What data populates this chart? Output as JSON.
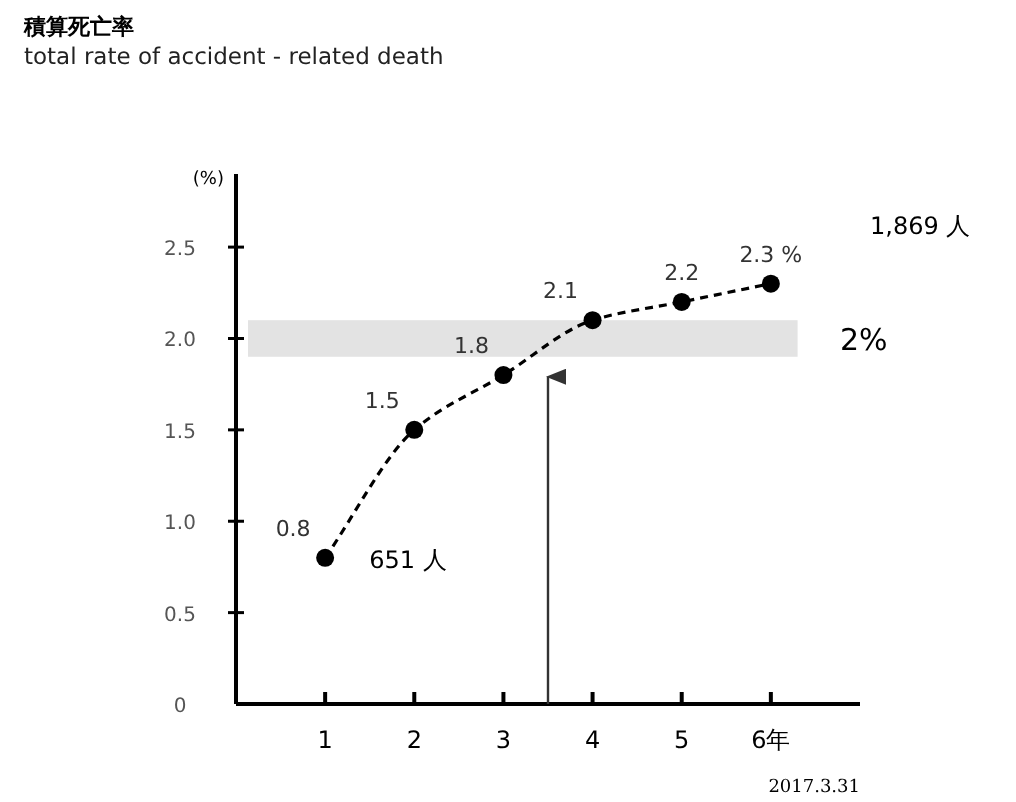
{
  "chart_data": {
    "type": "line",
    "title": "積算死亡率",
    "subtitle": "total rate of accident - related death",
    "ylabel": "(%)",
    "x": [
      1,
      2,
      3,
      4,
      5,
      6
    ],
    "series": [
      {
        "color": "#000000",
        "values": [
          0.8,
          1.5,
          1.8,
          2.1,
          2.2,
          2.3
        ],
        "value_labels": [
          "0.8",
          "1.5",
          "1.8",
          "2.1",
          "2.2",
          "2.3 %"
        ]
      }
    ],
    "xlim": [
      0,
      7
    ],
    "ylim": [
      0,
      2.9
    ],
    "xticks": [
      1,
      2,
      3,
      4,
      5,
      {
        "value": 6,
        "label": "6年"
      }
    ],
    "yticks": [
      0,
      0.5,
      {
        "value": 1,
        "label": "1.0"
      },
      1.5,
      {
        "value": 2,
        "label": "2.0"
      },
      2.5
    ],
    "bands": [
      {
        "axis": "y",
        "from": 1.9,
        "to": 2.1,
        "label": "2%",
        "color": "#e3e3e3"
      }
    ],
    "ref_lines": [
      {
        "axis": "x",
        "value": 3.5,
        "color": "#333333"
      }
    ],
    "annotations": [
      {
        "text": "651 人",
        "x": 1,
        "y": 0.8
      },
      "1,869 人",
      "2017.3.31"
    ],
    "marker": "circle",
    "line_style": "dashed"
  }
}
